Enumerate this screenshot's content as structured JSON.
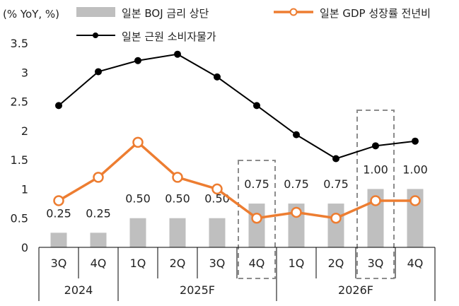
{
  "chart_data": {
    "type": "bar+line",
    "ylabel": "(% YoY, %)",
    "ylim": [
      0,
      3.5
    ],
    "yticks": [
      0,
      0.5,
      1,
      1.5,
      2,
      2.5,
      3,
      3.5
    ],
    "ytick_labels": [
      "0",
      "0.5",
      "1",
      "1.5",
      "2",
      "2.5",
      "3",
      "3.5"
    ],
    "categories": [
      "3Q",
      "4Q",
      "1Q",
      "2Q",
      "3Q",
      "4Q",
      "1Q",
      "2Q",
      "3Q",
      "4Q"
    ],
    "year_groups": [
      {
        "label": "2024",
        "start": 0,
        "end": 1
      },
      {
        "label": "2025F",
        "start": 2,
        "end": 5
      },
      {
        "label": "2026F",
        "start": 6,
        "end": 9
      }
    ],
    "series": [
      {
        "name": "일본 BOJ 금리 상단",
        "kind": "bar",
        "color": "#BFBFBF",
        "values": [
          0.25,
          0.25,
          0.5,
          0.5,
          0.5,
          0.75,
          0.75,
          0.75,
          1.0,
          1.0
        ],
        "labels": [
          "0.25",
          "0.25",
          "0.50",
          "0.50",
          "0.50",
          "0.75",
          "0.75",
          "0.75",
          "1.00",
          "1.00"
        ]
      },
      {
        "name": "일본 GDP 성장률 전년비",
        "kind": "line",
        "marker": "open-circle",
        "color": "#ED7D31",
        "values": [
          0.8,
          1.2,
          1.8,
          1.2,
          1.0,
          0.5,
          0.6,
          0.5,
          0.8,
          0.8
        ]
      },
      {
        "name": "일본 근원 소비자물가",
        "kind": "line",
        "marker": "filled-circle",
        "color": "#000000",
        "values": [
          2.43,
          3.01,
          3.2,
          3.31,
          2.92,
          2.43,
          1.93,
          1.52,
          1.74,
          1.82
        ]
      }
    ],
    "highlight_boxes": [
      {
        "start": 5,
        "end": 5
      },
      {
        "start": 8,
        "end": 8
      }
    ],
    "legend_position": "top"
  }
}
